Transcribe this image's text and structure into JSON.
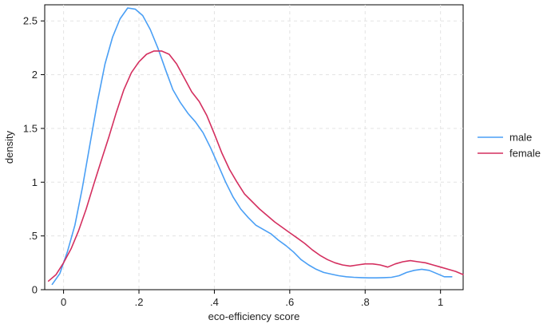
{
  "chart_data": {
    "type": "line",
    "title": "",
    "xlabel": "eco-efficiency score",
    "ylabel": "density",
    "xlim": [
      -0.05,
      1.06
    ],
    "ylim": [
      0,
      2.65
    ],
    "grid": true,
    "legend_position": "right",
    "x_ticks": [
      0,
      0.2,
      0.4,
      0.6,
      0.8,
      1
    ],
    "x_tick_labels": [
      "0",
      ".2",
      ".4",
      ".6",
      ".8",
      "1"
    ],
    "y_ticks": [
      0,
      0.5,
      1,
      1.5,
      2,
      2.5
    ],
    "y_tick_labels": [
      "0",
      ".5",
      "1",
      "1.5",
      "2",
      "2.5"
    ],
    "series": [
      {
        "name": "male",
        "color": "#4a9ff5",
        "x": [
          -0.03,
          -0.01,
          0.01,
          0.03,
          0.05,
          0.07,
          0.09,
          0.11,
          0.13,
          0.15,
          0.17,
          0.19,
          0.21,
          0.23,
          0.25,
          0.27,
          0.29,
          0.31,
          0.33,
          0.35,
          0.37,
          0.39,
          0.41,
          0.43,
          0.45,
          0.47,
          0.49,
          0.51,
          0.53,
          0.55,
          0.57,
          0.59,
          0.61,
          0.63,
          0.65,
          0.67,
          0.69,
          0.71,
          0.73,
          0.75,
          0.77,
          0.79,
          0.81,
          0.83,
          0.85,
          0.87,
          0.89,
          0.91,
          0.93,
          0.95,
          0.97,
          0.99,
          1.01,
          1.03
        ],
        "y": [
          0.05,
          0.15,
          0.35,
          0.6,
          0.95,
          1.35,
          1.75,
          2.1,
          2.35,
          2.52,
          2.62,
          2.61,
          2.55,
          2.42,
          2.25,
          2.05,
          1.86,
          1.74,
          1.64,
          1.56,
          1.46,
          1.32,
          1.16,
          1.0,
          0.86,
          0.75,
          0.67,
          0.6,
          0.56,
          0.52,
          0.46,
          0.41,
          0.35,
          0.28,
          0.23,
          0.19,
          0.16,
          0.145,
          0.13,
          0.12,
          0.115,
          0.112,
          0.11,
          0.11,
          0.112,
          0.115,
          0.13,
          0.16,
          0.18,
          0.19,
          0.18,
          0.15,
          0.12,
          0.12
        ]
      },
      {
        "name": "female",
        "color": "#d42f5f",
        "x": [
          -0.04,
          -0.02,
          0.0,
          0.02,
          0.04,
          0.06,
          0.08,
          0.1,
          0.12,
          0.14,
          0.16,
          0.18,
          0.2,
          0.22,
          0.24,
          0.26,
          0.28,
          0.3,
          0.32,
          0.34,
          0.36,
          0.38,
          0.4,
          0.42,
          0.44,
          0.46,
          0.48,
          0.5,
          0.52,
          0.54,
          0.56,
          0.58,
          0.6,
          0.62,
          0.64,
          0.66,
          0.68,
          0.7,
          0.72,
          0.74,
          0.76,
          0.78,
          0.8,
          0.82,
          0.84,
          0.86,
          0.88,
          0.9,
          0.92,
          0.94,
          0.96,
          0.98,
          1.0,
          1.02,
          1.04,
          1.06
        ],
        "y": [
          0.08,
          0.14,
          0.25,
          0.38,
          0.55,
          0.75,
          0.98,
          1.2,
          1.42,
          1.65,
          1.86,
          2.02,
          2.12,
          2.19,
          2.22,
          2.22,
          2.19,
          2.1,
          1.97,
          1.84,
          1.75,
          1.62,
          1.45,
          1.27,
          1.12,
          1.0,
          0.89,
          0.82,
          0.75,
          0.69,
          0.63,
          0.58,
          0.53,
          0.48,
          0.43,
          0.37,
          0.32,
          0.28,
          0.25,
          0.23,
          0.22,
          0.23,
          0.24,
          0.24,
          0.23,
          0.21,
          0.24,
          0.26,
          0.27,
          0.26,
          0.25,
          0.23,
          0.21,
          0.19,
          0.17,
          0.14
        ]
      }
    ]
  }
}
